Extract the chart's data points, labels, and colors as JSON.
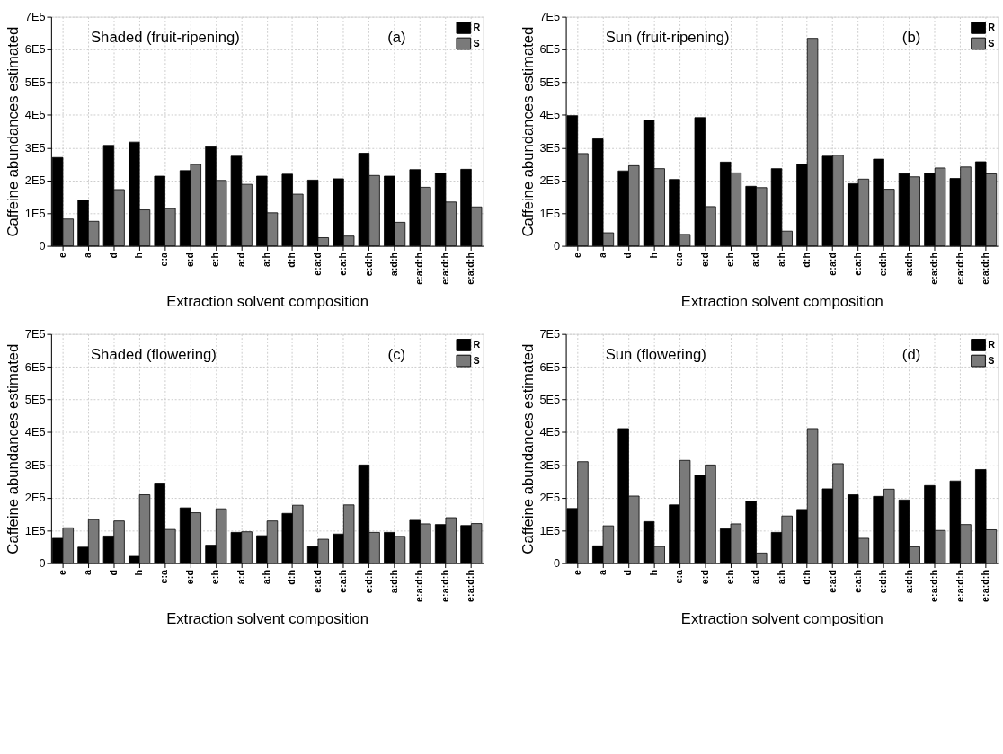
{
  "chart_data": [
    {
      "type": "bar",
      "title": "Shaded (fruit-ripening)",
      "annotations": [
        "(a)"
      ],
      "xlabel": "Extraction solvent composition",
      "ylabel": "Caffeine abundances estimated",
      "categories": [
        "e",
        "a",
        "d",
        "h",
        "e:a",
        "e:d",
        "e:h",
        "a:d",
        "a:h",
        "d:h",
        "e:a:d",
        "e:a:h",
        "e:d:h",
        "a:d:h",
        "e:a:d:h",
        "e:a:d:h",
        "e:a:d:h"
      ],
      "series": [
        {
          "name": "R",
          "color": "#000000",
          "values": [
            270000,
            140000,
            307000,
            317000,
            213000,
            230000,
            303000,
            274000,
            213000,
            219000,
            201000,
            205000,
            283000,
            213000,
            233000,
            222000,
            234000
          ]
        },
        {
          "name": "S",
          "color": "#7a7a7a",
          "values": [
            82000,
            75000,
            172000,
            110000,
            114000,
            249000,
            200000,
            188000,
            101000,
            158000,
            25000,
            30000,
            215000,
            72000,
            179000,
            134000,
            119000
          ]
        }
      ],
      "ylim": [
        0,
        700000
      ],
      "yticks": [
        {
          "value": 0,
          "label": "0"
        },
        {
          "value": 100000,
          "label": "1E5"
        },
        {
          "value": 200000,
          "label": "2E5"
        },
        {
          "value": 300000,
          "label": "3E5"
        },
        {
          "value": 400000,
          "label": "4E5"
        },
        {
          "value": 500000,
          "label": "5E5"
        },
        {
          "value": 600000,
          "label": "6E5"
        },
        {
          "value": 700000,
          "label": "7E5"
        }
      ],
      "grid": true,
      "legend": "top right"
    },
    {
      "type": "bar",
      "title": "Sun (fruit-ripening)",
      "annotations": [
        "(b)"
      ],
      "xlabel": "Extraction solvent composition",
      "ylabel": "Caffeine abundances estimated",
      "categories": [
        "e",
        "a",
        "d",
        "h",
        "e:a",
        "e:d",
        "e:h",
        "a:d",
        "a:h",
        "d:h",
        "e:a:d",
        "e:a:h",
        "e:d:h",
        "a:d:h",
        "e:a:d:h",
        "e:a:d:h",
        "e:a:d:h"
      ],
      "series": [
        {
          "name": "R",
          "color": "#000000",
          "values": [
            398000,
            327000,
            229000,
            383000,
            203000,
            392000,
            256000,
            182000,
            236000,
            250000,
            274000,
            190000,
            265000,
            221000,
            221000,
            206000,
            257000
          ]
        },
        {
          "name": "S",
          "color": "#7a7a7a",
          "values": [
            282000,
            40000,
            245000,
            236000,
            35000,
            120000,
            223000,
            178000,
            45000,
            634000,
            277000,
            204000,
            173000,
            211000,
            238000,
            241000,
            220000
          ]
        }
      ],
      "ylim": [
        0,
        700000
      ],
      "yticks": [
        {
          "value": 0,
          "label": "0"
        },
        {
          "value": 100000,
          "label": "1E5"
        },
        {
          "value": 200000,
          "label": "2E5"
        },
        {
          "value": 300000,
          "label": "3E5"
        },
        {
          "value": 400000,
          "label": "4E5"
        },
        {
          "value": 500000,
          "label": "5E5"
        },
        {
          "value": 600000,
          "label": "6E5"
        },
        {
          "value": 700000,
          "label": "7E5"
        }
      ],
      "grid": true,
      "legend": "top right"
    },
    {
      "type": "bar",
      "title": "Shaded (flowering)",
      "annotations": [
        "(c)"
      ],
      "xlabel": "Extraction solvent composition",
      "ylabel": "Caffeine abundances estimated",
      "categories": [
        "e",
        "a",
        "d",
        "h",
        "e:a",
        "e:d",
        "e:h",
        "a:d",
        "a:h",
        "d:h",
        "e:a:d",
        "e:a:h",
        "e:d:h",
        "a:d:h",
        "e:a:d:h",
        "e:a:d:h",
        "e:a:d:h"
      ],
      "series": [
        {
          "name": "R",
          "color": "#000000",
          "values": [
            76000,
            49000,
            83000,
            21000,
            242000,
            169000,
            55000,
            94000,
            84000,
            152000,
            51000,
            89000,
            300000,
            94000,
            131000,
            118000,
            115000
          ]
        },
        {
          "name": "S",
          "color": "#7a7a7a",
          "values": [
            108000,
            133000,
            129000,
            209000,
            103000,
            154000,
            166000,
            96000,
            129000,
            177000,
            73000,
            178000,
            94000,
            82000,
            120000,
            139000,
            121000
          ]
        }
      ],
      "ylim": [
        0,
        700000
      ],
      "yticks": [
        {
          "value": 0,
          "label": "0"
        },
        {
          "value": 100000,
          "label": "1E5"
        },
        {
          "value": 200000,
          "label": "2E5"
        },
        {
          "value": 300000,
          "label": "3E5"
        },
        {
          "value": 400000,
          "label": "4E5"
        },
        {
          "value": 500000,
          "label": "5E5"
        },
        {
          "value": 600000,
          "label": "6E5"
        },
        {
          "value": 700000,
          "label": "7E5"
        }
      ],
      "grid": true,
      "legend": "top right"
    },
    {
      "type": "bar",
      "title": "Sun (flowering)",
      "annotations": [
        "(d)"
      ],
      "xlabel": "Extraction solvent composition",
      "ylabel": "Caffeine abundances estimated",
      "categories": [
        "e",
        "a",
        "d",
        "h",
        "e:a",
        "e:d",
        "e:h",
        "a:d",
        "a:h",
        "d:h",
        "e:a:d",
        "e:a:h",
        "e:d:h",
        "a:d:h",
        "e:a:d:h",
        "e:a:d:h",
        "e:a:d:h"
      ],
      "series": [
        {
          "name": "R",
          "color": "#000000",
          "values": [
            167000,
            53000,
            411000,
            127000,
            178000,
            269000,
            105000,
            189000,
            94000,
            164000,
            227000,
            209000,
            204000,
            193000,
            237000,
            251000,
            286000
          ]
        },
        {
          "name": "S",
          "color": "#7a7a7a",
          "values": [
            310000,
            114000,
            205000,
            51000,
            314000,
            300000,
            120000,
            31000,
            144000,
            411000,
            304000,
            76000,
            226000,
            50000,
            100000,
            118000,
            102000
          ]
        }
      ],
      "ylim": [
        0,
        700000
      ],
      "yticks": [
        {
          "value": 0,
          "label": "0"
        },
        {
          "value": 100000,
          "label": "1E5"
        },
        {
          "value": 200000,
          "label": "2E5"
        },
        {
          "value": 300000,
          "label": "3E5"
        },
        {
          "value": 400000,
          "label": "4E5"
        },
        {
          "value": 500000,
          "label": "5E5"
        },
        {
          "value": 600000,
          "label": "6E5"
        },
        {
          "value": 700000,
          "label": "7E5"
        }
      ],
      "grid": true,
      "legend": "top right"
    }
  ]
}
